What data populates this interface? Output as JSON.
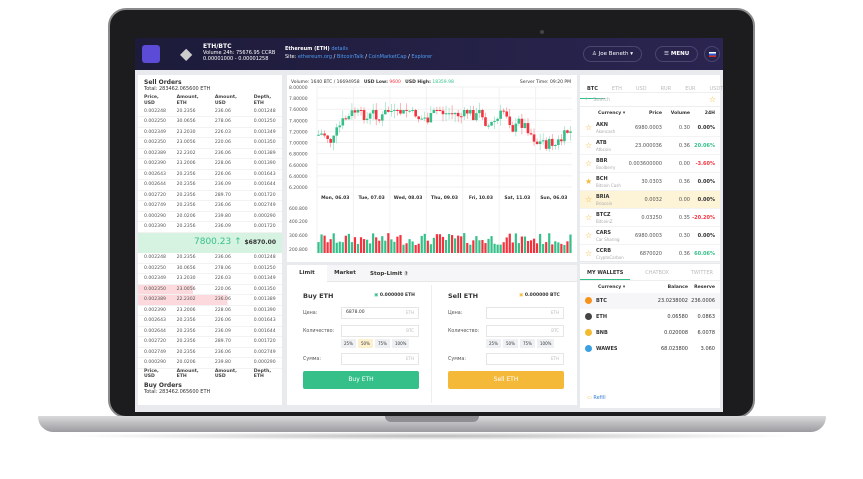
{
  "header": {
    "pair": "ETH/BTC",
    "volume": "Volume 24h: 75676.95 CCRB",
    "range": "0.00001000 - 0.00001258",
    "coin_title": "Ethereum (ETH)",
    "details_link": "details",
    "site_label": "Site:",
    "links": [
      "ethereum.org",
      "BitcoinTalk",
      "CoinMarketCap",
      "Explorer"
    ],
    "user": "Joe Beneth",
    "menu": "MENU"
  },
  "sell_orders": {
    "title": "Sell Orders",
    "total": "Total: 283462.065600 ETH",
    "columns": [
      "Price, USD",
      "Amount, ETH",
      "Amount, USD",
      "Depth, ETH"
    ],
    "rows": [
      [
        "0.002248",
        "20.2356",
        "236.06",
        "0.001248"
      ],
      [
        "0.002250",
        "30.0656",
        "278.06",
        "0.001250"
      ],
      [
        "0.002349",
        "23.2030",
        "226.03",
        "0.001349"
      ],
      [
        "0.002350",
        "23.0056",
        "220.06",
        "0.001350"
      ],
      [
        "0.002389",
        "22.2302",
        "236.06",
        "0.001389"
      ],
      [
        "0.002390",
        "23.2006",
        "228.06",
        "0.001390"
      ],
      [
        "0.002643",
        "20.2356",
        "226.06",
        "0.001643"
      ],
      [
        "0.002644",
        "20.2356",
        "236.09",
        "0.001644"
      ],
      [
        "0.002720",
        "20.2356",
        "289.70",
        "0.001720"
      ],
      [
        "0.002749",
        "20.2356",
        "236.06",
        "0.002749"
      ],
      [
        "0.000290",
        "20.0206",
        "239.80",
        "0.000290"
      ],
      [
        "0.002390",
        "20.2356",
        "236.09",
        "0.001720"
      ]
    ]
  },
  "last_price": {
    "value": "7800.23 ↑",
    "usd": "$6870.00",
    "color": "#35c08a"
  },
  "buy_orders": {
    "title": "Buy Orders",
    "total": "Total: 283462.065600 ETH",
    "columns": [
      "Price, USD",
      "Amount, ETH",
      "Amount, USD",
      "Depth, ETH"
    ],
    "rows": [
      [
        "0.002248",
        "20.2356",
        "236.06",
        "0.001248"
      ],
      [
        "0.002250",
        "30.0656",
        "278.06",
        "0.001250"
      ],
      [
        "0.002349",
        "23.2030",
        "226.03",
        "0.001349"
      ],
      [
        "0.002350",
        "23.0056",
        "220.06",
        "0.001350"
      ],
      [
        "0.002389",
        "22.2302",
        "236.06",
        "0.001389"
      ],
      [
        "0.002390",
        "23.2006",
        "228.06",
        "0.001390"
      ],
      [
        "0.002643",
        "20.2356",
        "226.06",
        "0.001643"
      ],
      [
        "0.002644",
        "20.2356",
        "236.09",
        "0.001644"
      ],
      [
        "0.002720",
        "20.2356",
        "289.70",
        "0.001720"
      ],
      [
        "0.002749",
        "20.2356",
        "236.06",
        "0.002749"
      ],
      [
        "0.000290",
        "20.0206",
        "239.80",
        "0.000290"
      ]
    ]
  },
  "chart": {
    "volume": "Volume: 1640 BTC / 16694958",
    "usd_low_label": "USD Low:",
    "usd_low": "9600",
    "usd_high_label": "USD High:",
    "usd_high": "18359.98",
    "server_time": "Server Time: 09:20 PM",
    "y_ticks": [
      "8.00000",
      "7.80000",
      "7.60000",
      "7.40000",
      "7.20000",
      "7.00000",
      "6.80000",
      "6.60000",
      "6.40000",
      "6.20000"
    ],
    "x_ticks": [
      "Mon, 06.03",
      "Tue, 07.03",
      "Wed, 08.03",
      "Thu, 09.03",
      "Fri, 10.03",
      "Sat, 11.03",
      "Sun, 06.03"
    ],
    "vol_ticks": [
      "600.800",
      "400.200",
      "300.600",
      "200.800"
    ],
    "up_color": "#35c08a",
    "down_color": "#f5333f"
  },
  "order": {
    "tabs": [
      "Limit",
      "Market",
      "Stop-Limit"
    ],
    "buy": {
      "title": "Buy ETH",
      "balance": "0.000000 ETH",
      "price_label": "Цена:",
      "price": "6878.00",
      "price_unit": "ETH",
      "qty_label": "Количество:",
      "qty_unit": "BTC",
      "pcts": [
        "25%",
        "50%",
        "75%",
        "100%"
      ],
      "sum_label": "Сумма:",
      "sum_unit": "ETH",
      "button": "Buy ETH"
    },
    "sell": {
      "title": "Sell ETH",
      "balance": "0.000000 BTC",
      "price_label": "Цена:",
      "price_unit": "ETH",
      "qty_label": "Количество:",
      "qty_unit": "BTC",
      "pcts": [
        "25%",
        "50%",
        "75%",
        "100%"
      ],
      "sum_label": "Сумма:",
      "sum_unit": "ETH",
      "button": "Sell ETH"
    }
  },
  "markets": {
    "tabs": [
      "BTC",
      "ETH",
      "USD",
      "RUR",
      "EUR",
      "USDT"
    ],
    "search_placeholder": "Search",
    "columns": [
      "Currency ▾",
      "Price",
      "Volume",
      "24H"
    ],
    "rows": [
      {
        "sym": "AKN",
        "name": "Akencash",
        "price": "6980.0003",
        "vol": "0.30",
        "ch": "0.00%",
        "dir": "flat",
        "fav": false
      },
      {
        "sym": "ATB",
        "name": "Atbcoin",
        "price": "23.000036",
        "vol": "0.36",
        "ch": "20.06%",
        "dir": "up",
        "fav": false
      },
      {
        "sym": "BBR",
        "name": "Boolberry",
        "price": "0.003600000",
        "vol": "0.00",
        "ch": "-3.60%",
        "dir": "down",
        "fav": false
      },
      {
        "sym": "BCH",
        "name": "Bitcoin Cash",
        "price": "30.0303",
        "vol": "0.36",
        "ch": "0.00%",
        "dir": "flat",
        "fav": true
      },
      {
        "sym": "BRIA",
        "name": "Briacoin",
        "price": "0.0032",
        "vol": "0.00",
        "ch": "0.00%",
        "dir": "flat",
        "fav": false
      },
      {
        "sym": "BTCZ",
        "name": "BitcoinZ",
        "price": "0.03250",
        "vol": "0.35",
        "ch": "-20.20%",
        "dir": "down",
        "fav": false
      },
      {
        "sym": "CARS",
        "name": "Car Sharing",
        "price": "6980.0003",
        "vol": "0.30",
        "ch": "0.00%",
        "dir": "flat",
        "fav": false
      },
      {
        "sym": "CCRB",
        "name": "CryptoCarbon",
        "price": "6870020",
        "vol": "0.36",
        "ch": "60.06%",
        "dir": "up",
        "fav": false
      }
    ]
  },
  "wallets": {
    "tabs": [
      "MY WALLETS",
      "CHATBOX",
      "TWITTER"
    ],
    "columns": [
      "Currency ▾",
      "Balance",
      "Reserve"
    ],
    "rows": [
      {
        "sym": "BTC",
        "balance": "23.0238002",
        "reserve": "236.0006",
        "color": "#f7931a"
      },
      {
        "sym": "ETH",
        "balance": "0.06580",
        "reserve": "0.0863",
        "color": "#444"
      },
      {
        "sym": "BNB",
        "balance": "0.020008",
        "reserve": "6.0078",
        "color": "#f3ba2f"
      },
      {
        "sym": "WAWES",
        "balance": "68.023800",
        "reserve": "3.060",
        "color": "#3aa0e0"
      }
    ],
    "refill": "Refill"
  }
}
